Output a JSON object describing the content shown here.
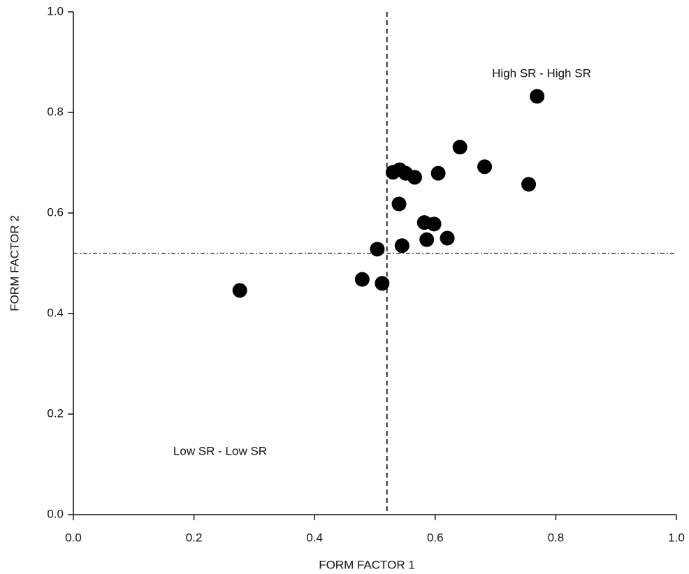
{
  "chart_data": {
    "type": "scatter",
    "x_label": "FORM FACTOR 1",
    "y_label": "FORM FACTOR 2",
    "annotations": [
      "High SR - High SR",
      "Low SR - Low SR"
    ],
    "x": [
      0.769,
      0.641,
      0.682,
      0.755,
      0.53,
      0.541,
      0.551,
      0.566,
      0.605,
      0.54,
      0.582,
      0.598,
      0.586,
      0.62,
      0.545,
      0.504,
      0.479,
      0.512,
      0.276
    ],
    "y": [
      0.832,
      0.731,
      0.692,
      0.657,
      0.681,
      0.686,
      0.679,
      0.671,
      0.679,
      0.618,
      0.581,
      0.578,
      0.547,
      0.55,
      0.535,
      0.528,
      0.468,
      0.46,
      0.446
    ],
    "color": "#000000",
    "vline": 0.52,
    "hline": 0.52,
    "xlim": [
      0,
      1
    ],
    "ylim": [
      0,
      1
    ],
    "xticks": [
      {
        "value": 0,
        "label": "0.0"
      },
      {
        "value": 0.2,
        "label": "0.2"
      },
      {
        "value": 0.4,
        "label": "0.4"
      },
      {
        "value": 0.6,
        "label": "0.6"
      },
      {
        "value": 0.8,
        "label": "0.8"
      },
      {
        "value": 1,
        "label": "1.0"
      }
    ],
    "yticks": [
      {
        "value": 0,
        "label": "0.0"
      },
      {
        "value": 0.2,
        "label": "0.2"
      },
      {
        "value": 0.4,
        "label": "0.4"
      },
      {
        "value": 0.6,
        "label": "0.6"
      },
      {
        "value": 0.8,
        "label": "0.8"
      },
      {
        "value": 1,
        "label": "1.0"
      }
    ],
    "grid": false
  }
}
